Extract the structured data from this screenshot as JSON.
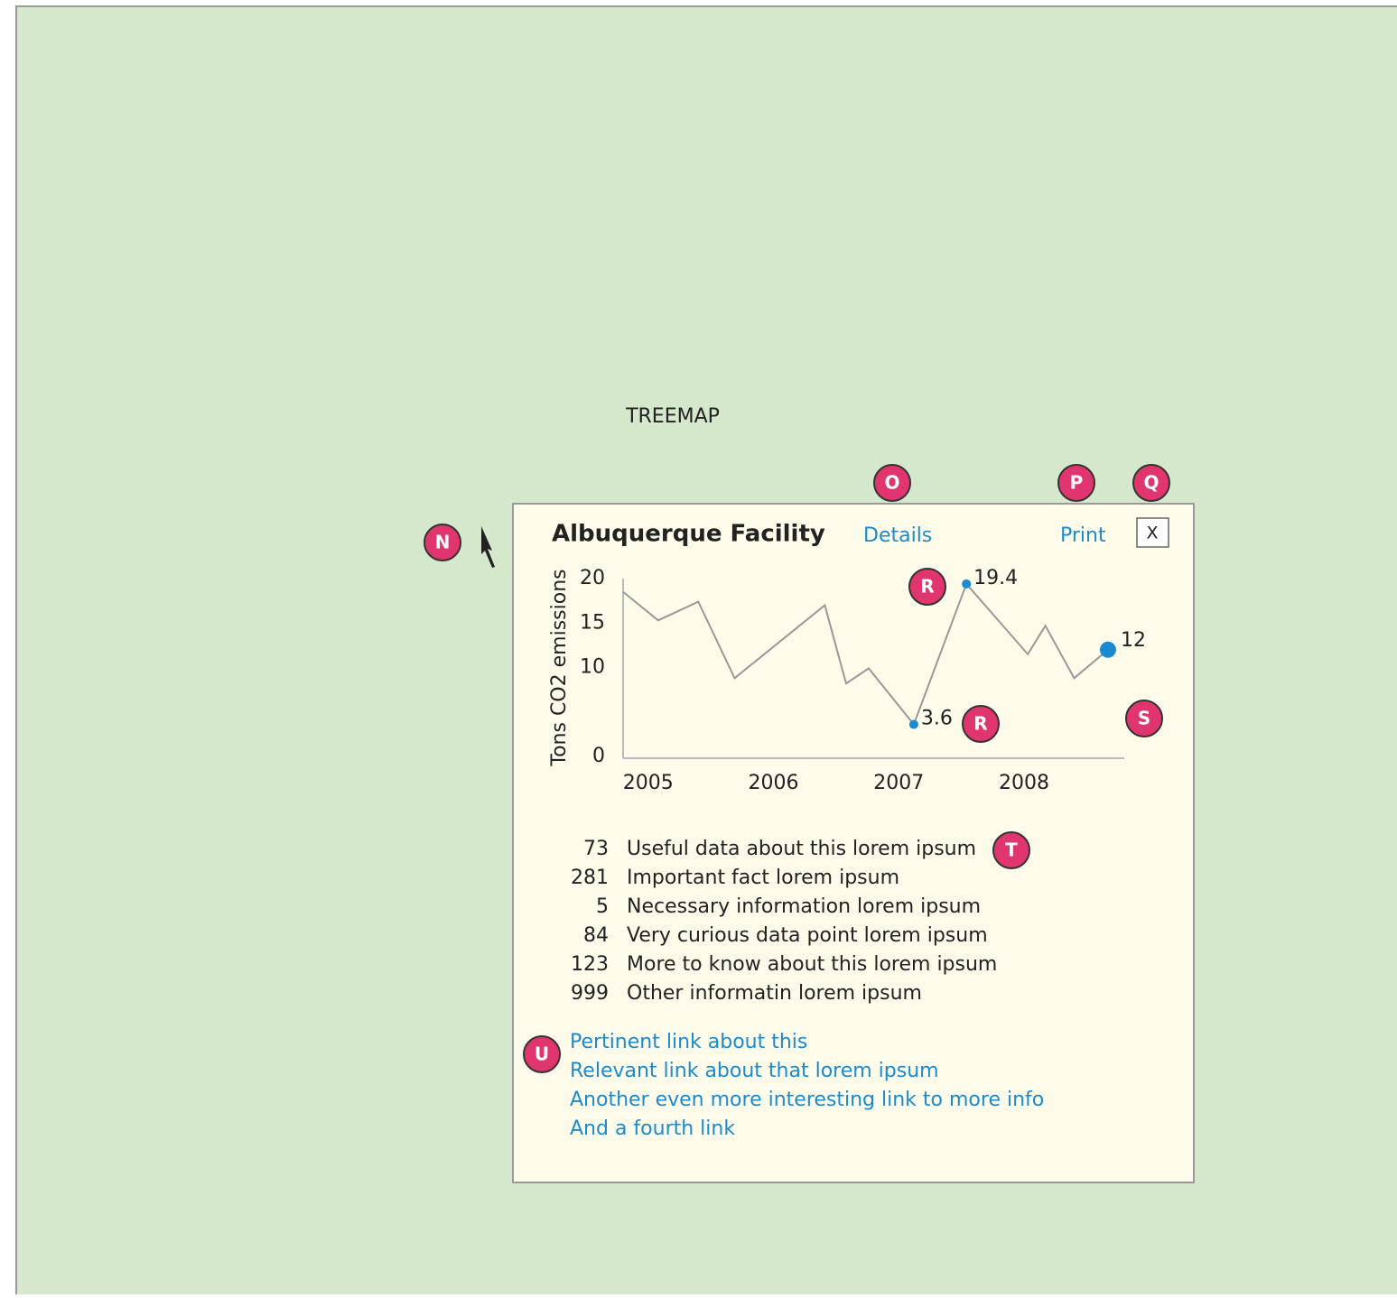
{
  "screen_label": "TREEMAP",
  "popup": {
    "title": "Albuquerque Facility",
    "details": "Details",
    "print": "Print",
    "close": "X"
  },
  "chart_data": {
    "type": "line",
    "ylabel": "Tons CO2 emissions",
    "x": [
      2004.8,
      2005.08,
      2005.4,
      2005.69,
      2006.41,
      2006.58,
      2006.76,
      2007.12,
      2007.54,
      2008.03,
      2008.17,
      2008.4,
      2008.67
    ],
    "series": [
      {
        "color": "#999999",
        "point_color": "#1a8bd0",
        "values": [
          18.5,
          15.3,
          17.4,
          8.8,
          17,
          8.2,
          9.9,
          3.6,
          19.4,
          11.5,
          14.7,
          8.8,
          12
        ],
        "value_labels": [
          null,
          null,
          null,
          null,
          null,
          null,
          null,
          "3.6",
          "19.4",
          null,
          null,
          null,
          "12"
        ]
      }
    ],
    "xlim": [
      2004.8,
      2008.8
    ],
    "xticks": [
      2005,
      2006,
      2007,
      2008
    ],
    "ylim": [
      0,
      20
    ],
    "yticks": [
      0,
      10,
      15,
      20
    ]
  },
  "facts": [
    {
      "value": 73,
      "text": "Useful data about this lorem ipsum"
    },
    {
      "value": 281,
      "text": "Important fact lorem ipsum"
    },
    {
      "value": 5,
      "text": "Necessary information lorem ipsum"
    },
    {
      "value": 84,
      "text": "Very curious data point  lorem ipsum"
    },
    {
      "value": 123,
      "text": "More to know about this  lorem ipsum"
    },
    {
      "value": 999,
      "text": "Other informatin  lorem ipsum"
    }
  ],
  "links": [
    "Pertinent link about this",
    "Relevant link about that lorem ipsum",
    "Another even more interesting link to more info",
    "And a fourth link"
  ],
  "badges": [
    "N",
    "O",
    "P",
    "Q",
    "R",
    "R",
    "S",
    "T",
    "U"
  ]
}
